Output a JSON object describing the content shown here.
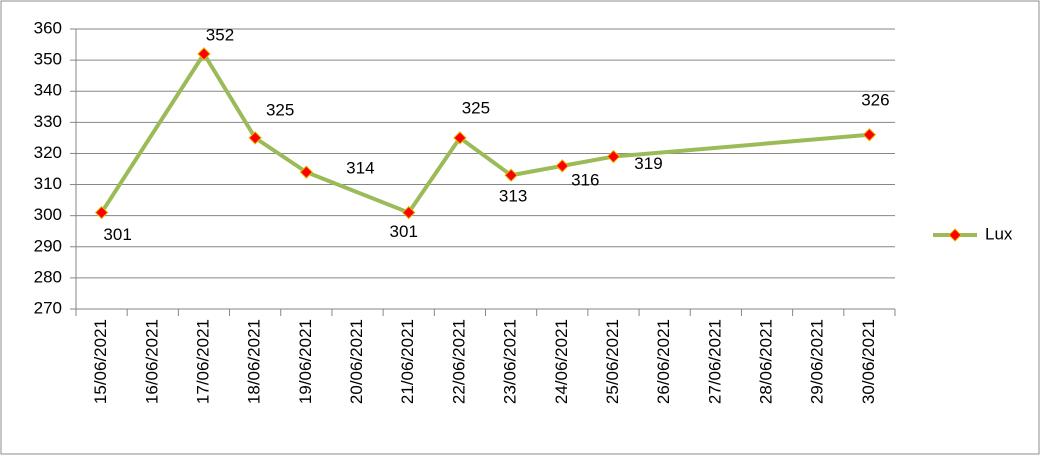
{
  "chart_data": {
    "type": "line",
    "categories": [
      "15/06/2021",
      "16/06/2021",
      "17/06/2021",
      "18/06/2021",
      "19/06/2021",
      "20/06/2021",
      "21/06/2021",
      "22/06/2021",
      "23/06/2021",
      "24/06/2021",
      "25/06/2021",
      "26/06/2021",
      "27/06/2021",
      "28/06/2021",
      "29/06/2021",
      "30/06/2021"
    ],
    "series": [
      {
        "name": "Lux",
        "color": "#9bbb59",
        "marker_color": "#ff0000",
        "values": [
          301,
          null,
          352,
          325,
          314,
          null,
          301,
          325,
          313,
          316,
          319,
          null,
          null,
          null,
          null,
          326
        ]
      }
    ],
    "ylim": [
      270,
      360
    ],
    "yticks": [
      270,
      280,
      290,
      300,
      310,
      320,
      330,
      340,
      350,
      360
    ],
    "grid": true,
    "legend": "right",
    "data_labels": true
  }
}
